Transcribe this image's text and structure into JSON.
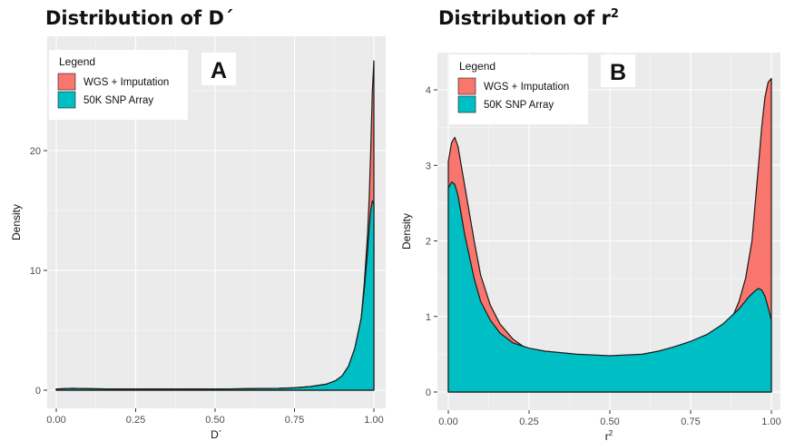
{
  "colors": {
    "panel_bg": "#ebebeb",
    "grid": "#ffffff",
    "wgs": "#f8766d",
    "snp": "#00bfc4",
    "outline": "#1a1a1a"
  },
  "chart_data": [
    {
      "type": "area",
      "title": "Distribution of D´",
      "panel_label": "A",
      "xlabel": "D´",
      "ylabel": "Density",
      "xlim": [
        -0.05,
        1.05
      ],
      "ylim": [
        -0.5,
        28
      ],
      "x_ticks": [
        0,
        0.25,
        0.5,
        0.75,
        1
      ],
      "x_tick_labels": [
        "0.00",
        "0.25",
        "0.50",
        "0.75",
        "1.00"
      ],
      "y_ticks": [
        0,
        10,
        20
      ],
      "y_tick_labels": [
        "0",
        "10",
        "20"
      ],
      "grid": true,
      "legend": {
        "title": "Legend",
        "placement": "top-left",
        "entries": [
          "WGS + Imputation",
          "50K SNP Array"
        ]
      },
      "series": [
        {
          "name": "WGS + Imputation",
          "color": "#f8766d",
          "x": [
            0,
            0.05,
            0.1,
            0.2,
            0.3,
            0.4,
            0.5,
            0.6,
            0.7,
            0.75,
            0.8,
            0.85,
            0.88,
            0.9,
            0.92,
            0.94,
            0.96,
            0.97,
            0.98,
            0.985,
            0.99,
            0.995,
            1.0
          ],
          "y": [
            0.1,
            0.15,
            0.12,
            0.1,
            0.1,
            0.1,
            0.1,
            0.12,
            0.15,
            0.2,
            0.3,
            0.5,
            0.8,
            1.2,
            2.0,
            3.5,
            6.0,
            9.0,
            13.0,
            16.0,
            20.0,
            25.0,
            27.5
          ]
        },
        {
          "name": "50K SNP Array",
          "color": "#00bfc4",
          "x": [
            0,
            0.05,
            0.1,
            0.2,
            0.3,
            0.4,
            0.5,
            0.6,
            0.7,
            0.75,
            0.8,
            0.85,
            0.88,
            0.9,
            0.92,
            0.94,
            0.96,
            0.97,
            0.98,
            0.985,
            0.99,
            0.995,
            1.0
          ],
          "y": [
            0.1,
            0.15,
            0.12,
            0.1,
            0.1,
            0.1,
            0.1,
            0.12,
            0.15,
            0.2,
            0.3,
            0.5,
            0.8,
            1.2,
            2.0,
            3.5,
            6.0,
            8.5,
            11.5,
            13.5,
            15.0,
            15.8,
            15.5
          ]
        }
      ]
    },
    {
      "type": "area",
      "title": "Distribution of r",
      "title_superscript": "2",
      "panel_label": "B",
      "xlabel": "r",
      "xlabel_superscript": "2",
      "ylabel": "Density",
      "xlim": [
        -0.05,
        1.0
      ],
      "ylim": [
        -0.1,
        4.4
      ],
      "x_ticks": [
        0,
        0.25,
        0.5,
        0.75,
        1
      ],
      "x_tick_labels": [
        "0.00",
        "0.25",
        "0.50",
        "0.75",
        "1.00"
      ],
      "y_ticks": [
        0,
        1,
        2,
        3,
        4
      ],
      "y_tick_labels": [
        "0",
        "1",
        "2",
        "3",
        "4"
      ],
      "grid": true,
      "legend": {
        "title": "Legend",
        "placement": "top-left",
        "entries": [
          "WGS + Imputation",
          "50K SNP Array"
        ]
      },
      "series": [
        {
          "name": "WGS + Imputation",
          "color": "#f8766d",
          "x": [
            0,
            0.01,
            0.02,
            0.03,
            0.05,
            0.08,
            0.1,
            0.13,
            0.16,
            0.2,
            0.25,
            0.3,
            0.4,
            0.5,
            0.6,
            0.7,
            0.75,
            0.8,
            0.85,
            0.88,
            0.9,
            0.92,
            0.94,
            0.95,
            0.96,
            0.97,
            0.98,
            0.99,
            1.0
          ],
          "y": [
            3.05,
            3.3,
            3.37,
            3.25,
            2.75,
            2.0,
            1.55,
            1.15,
            0.9,
            0.7,
            0.55,
            0.48,
            0.42,
            0.37,
            0.35,
            0.4,
            0.5,
            0.6,
            0.8,
            1.0,
            1.2,
            1.5,
            2.0,
            2.5,
            3.0,
            3.5,
            3.9,
            4.1,
            4.15
          ]
        },
        {
          "name": "50K SNP Array",
          "color": "#00bfc4",
          "x": [
            0,
            0.01,
            0.02,
            0.03,
            0.05,
            0.08,
            0.1,
            0.13,
            0.16,
            0.2,
            0.25,
            0.3,
            0.4,
            0.5,
            0.6,
            0.65,
            0.7,
            0.75,
            0.8,
            0.85,
            0.9,
            0.93,
            0.95,
            0.96,
            0.97,
            0.98,
            0.99,
            1.0
          ],
          "y": [
            2.7,
            2.78,
            2.75,
            2.6,
            2.1,
            1.5,
            1.2,
            0.95,
            0.78,
            0.65,
            0.58,
            0.54,
            0.5,
            0.48,
            0.5,
            0.54,
            0.6,
            0.67,
            0.76,
            0.9,
            1.1,
            1.26,
            1.34,
            1.37,
            1.35,
            1.27,
            1.12,
            0.95
          ]
        }
      ]
    }
  ]
}
